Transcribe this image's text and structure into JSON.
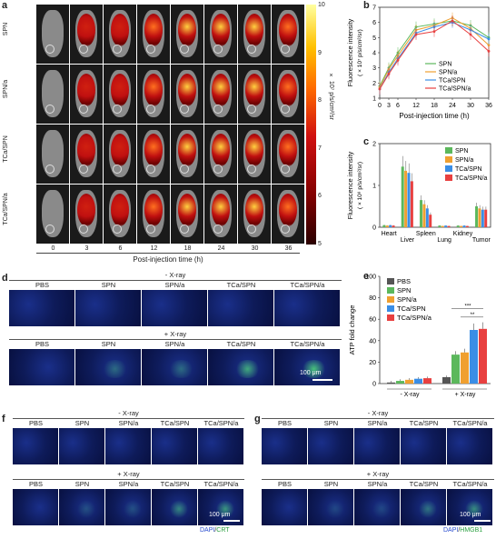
{
  "panels": {
    "a": "a",
    "b": "b",
    "c": "c",
    "d": "d",
    "e": "e",
    "f": "f",
    "g": "g"
  },
  "panel_a": {
    "rows": [
      "SPN",
      "SPN/a",
      "TCa/SPN",
      "TCa/SPN/a"
    ],
    "times": [
      "0",
      "3",
      "6",
      "12",
      "18",
      "24",
      "30",
      "36"
    ],
    "xlabel": "Post-injection time (h)",
    "colorbar_ticks": [
      "10",
      "9",
      "8",
      "7",
      "6",
      "5"
    ],
    "colorbar_label": "× 10⁷ p/s/cm²/sr"
  },
  "chart_data": [
    {
      "type": "line",
      "panel": "b",
      "x": [
        0,
        3,
        6,
        12,
        18,
        24,
        30,
        36
      ],
      "series": [
        {
          "name": "SPN",
          "values": [
            1.8,
            3.0,
            4.0,
            5.7,
            5.9,
            6.1,
            5.8,
            5.0
          ],
          "color": "#5cb85c"
        },
        {
          "name": "SPN/a",
          "values": [
            1.7,
            2.9,
            3.8,
            5.5,
            5.8,
            6.3,
            5.6,
            4.5
          ],
          "color": "#f0a030"
        },
        {
          "name": "TCa/SPN",
          "values": [
            1.6,
            2.7,
            3.6,
            5.3,
            5.7,
            6.0,
            5.5,
            4.9
          ],
          "color": "#3a8ee6"
        },
        {
          "name": "TCa/SPN/a",
          "values": [
            1.6,
            2.6,
            3.5,
            5.2,
            5.4,
            6.1,
            5.2,
            4.1
          ],
          "color": "#e84040"
        }
      ],
      "xlabel": "Post-injection time (h)",
      "ylabel": "Fluorescence intensity",
      "yunit": "( × 10⁷ p/s/cm²/sr)",
      "xticks": [
        "0",
        "3",
        "6",
        "12",
        "18",
        "24",
        "30",
        "36"
      ],
      "yticks": [
        "1",
        "2",
        "3",
        "4",
        "5",
        "6",
        "7"
      ],
      "ylim": [
        1,
        7
      ]
    },
    {
      "type": "bar",
      "panel": "c",
      "categories": [
        "Heart",
        "Liver",
        "Spleen",
        "Lung",
        "Kidney",
        "Tumor"
      ],
      "series": [
        {
          "name": "SPN",
          "values": [
            0.05,
            1.45,
            0.65,
            0.04,
            0.04,
            0.5
          ],
          "color": "#5cb85c"
        },
        {
          "name": "SPN/a",
          "values": [
            0.04,
            1.35,
            0.55,
            0.03,
            0.03,
            0.45
          ],
          "color": "#f0a030"
        },
        {
          "name": "TCa/SPN",
          "values": [
            0.05,
            1.3,
            0.45,
            0.04,
            0.04,
            0.42
          ],
          "color": "#3a8ee6"
        },
        {
          "name": "TCa/SPN/a",
          "values": [
            0.04,
            1.1,
            0.3,
            0.03,
            0.03,
            0.42
          ],
          "color": "#e84040"
        }
      ],
      "ylabel": "Fluorescence intensity",
      "yunit": "( × 10⁸ p/s/cm²/sr)",
      "yticks": [
        "0",
        "1",
        "2"
      ],
      "ylim": [
        0,
        2
      ]
    },
    {
      "type": "bar",
      "panel": "e",
      "categories": [
        "- X-ray",
        "+ X-ray"
      ],
      "series": [
        {
          "name": "PBS",
          "values": [
            1,
            6
          ],
          "color": "#555555"
        },
        {
          "name": "SPN",
          "values": [
            2.5,
            27
          ],
          "color": "#5cb85c"
        },
        {
          "name": "SPN/a",
          "values": [
            3.5,
            29
          ],
          "color": "#f0a030"
        },
        {
          "name": "TCa/SPN",
          "values": [
            4.5,
            50
          ],
          "color": "#3a8ee6"
        },
        {
          "name": "TCa/SPN/a",
          "values": [
            5,
            51
          ],
          "color": "#e84040"
        }
      ],
      "ylabel": "ATP fold change",
      "yticks": [
        "0",
        "20",
        "40",
        "60",
        "80",
        "100"
      ],
      "ylim": [
        0,
        100
      ],
      "annotations": [
        "***",
        "**"
      ]
    }
  ],
  "panel_d": {
    "top_label": "- X-ray",
    "bottom_label": "+ X-ray",
    "cols": [
      "PBS",
      "SPN",
      "SPN/a",
      "TCa/SPN",
      "TCa/SPN/a"
    ],
    "scalebar": "100 μm"
  },
  "panel_f": {
    "top_label": "- X-ray",
    "bottom_label": "+ X-ray",
    "cols": [
      "PBS",
      "SPN",
      "SPN/a",
      "TCa/SPN",
      "TCa/SPN/a"
    ],
    "scalebar": "100 μm",
    "stain_a": "DAPI",
    "stain_sep": "/",
    "stain_b": "CRT"
  },
  "panel_g": {
    "top_label": "- X-ray",
    "bottom_label": "+ X-ray",
    "cols": [
      "PBS",
      "SPN",
      "SPN/a",
      "TCa/SPN",
      "TCa/SPN/a"
    ],
    "scalebar": "100 μm",
    "stain_a": "DAPI",
    "stain_sep": "/",
    "stain_b": "HMGB1"
  }
}
